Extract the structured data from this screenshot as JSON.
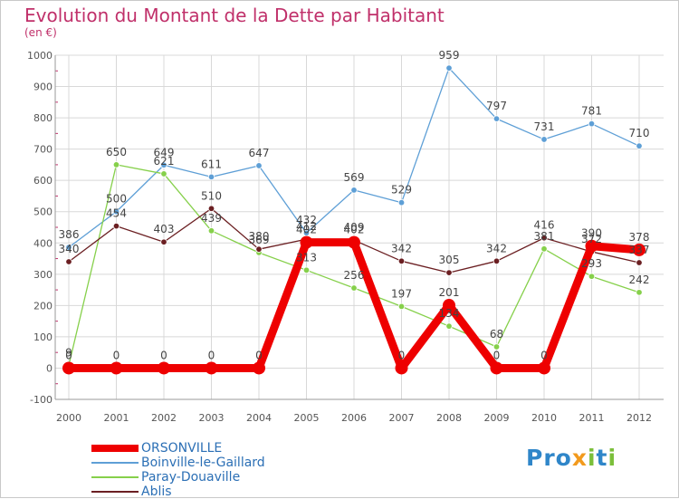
{
  "header": {
    "title": "Evolution du Montant de la Dette par Habitant",
    "subtitle": "(en €)"
  },
  "logo": {
    "text": "Proxiti"
  },
  "colors": {
    "title": "#c0306a",
    "grid": "#d8d8d8",
    "axis_text": "#555555",
    "legend_text": "#2b6fb5",
    "tick_marks": "#c0306a"
  },
  "chart_data": {
    "type": "line",
    "title": "Evolution du Montant de la Dette par Habitant",
    "subtitle": "(en €)",
    "xlabel": "",
    "ylabel": "",
    "ylim": [
      -100,
      1000
    ],
    "yticks": [
      -100,
      0,
      100,
      200,
      300,
      400,
      500,
      600,
      700,
      800,
      900,
      1000
    ],
    "grid": true,
    "legend_position": "bottom-left",
    "x": [
      "2000",
      "2001",
      "2002",
      "2003",
      "2004",
      "2005",
      "2006",
      "2007",
      "2008",
      "2009",
      "2010",
      "2011",
      "2012"
    ],
    "series": [
      {
        "name": "ORSONVILLE",
        "color": "#ee0000",
        "values": [
          0,
          0,
          0,
          0,
          0,
          402,
          402,
          0,
          201,
          0,
          0,
          390,
          378
        ],
        "labels": [
          "0",
          "0",
          "0",
          "0",
          "0",
          "402",
          "402",
          "0",
          "201",
          "0",
          "0",
          "390",
          "378"
        ]
      },
      {
        "name": "Boinville-le-Gaillard",
        "color": "#5e9fd6",
        "values": [
          386,
          500,
          649,
          611,
          647,
          432,
          569,
          529,
          959,
          797,
          731,
          781,
          710
        ],
        "labels": [
          "386",
          "500",
          "649",
          "611",
          "647",
          "432",
          "569",
          "529",
          "959",
          "797",
          "731",
          "781",
          "710"
        ]
      },
      {
        "name": "Paray-Douaville",
        "color": "#86d04b",
        "values": [
          9,
          650,
          621,
          439,
          369,
          313,
          256,
          197,
          134,
          68,
          381,
          293,
          242
        ],
        "labels": [
          "9",
          "650",
          "621",
          "439",
          "369",
          "313",
          "256",
          "197",
          "134",
          "68",
          "381",
          "293",
          "242"
        ]
      },
      {
        "name": "Ablis",
        "color": "#6b1f22",
        "values": [
          340,
          454,
          403,
          510,
          380,
          412,
          409,
          342,
          305,
          342,
          416,
          372,
          337
        ],
        "labels": [
          "340",
          "454",
          "403",
          "510",
          "380",
          "412",
          "409",
          "342",
          "305",
          "342",
          "416",
          "372",
          "337"
        ]
      }
    ]
  }
}
